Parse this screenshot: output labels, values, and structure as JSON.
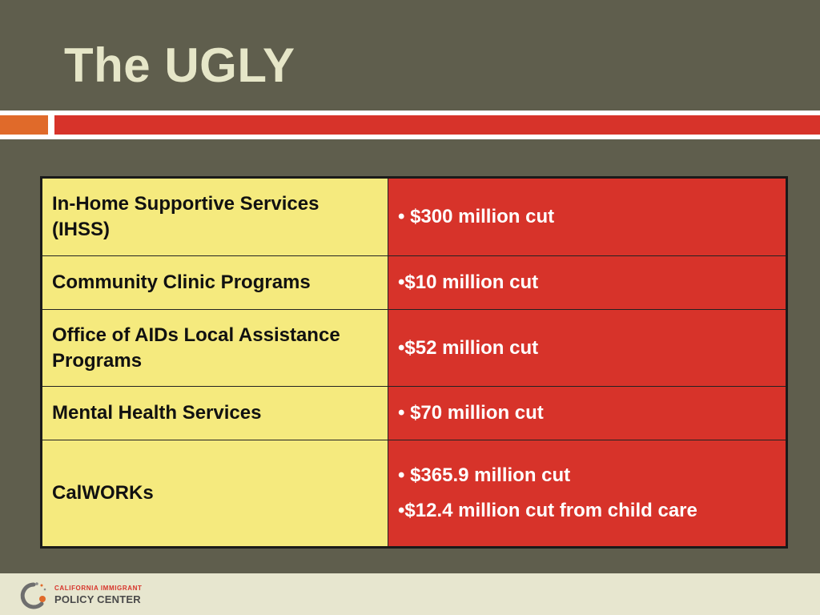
{
  "slide": {
    "title": "The UGLY"
  },
  "table": {
    "rows": [
      {
        "program": "In-Home Supportive Services (IHSS)",
        "cuts": [
          "• $300 million cut"
        ]
      },
      {
        "program": "Community Clinic Programs",
        "cuts": [
          "•$10 million cut"
        ]
      },
      {
        "program": "Office of AIDs Local Assistance Programs",
        "cuts": [
          "•$52 million cut"
        ]
      },
      {
        "program": "Mental Health Services",
        "cuts": [
          "• $70 million cut"
        ]
      },
      {
        "program": "CalWORKs",
        "cuts": [
          "• $365.9 million cut",
          "•$12.4 million cut from child care"
        ]
      }
    ]
  },
  "footer": {
    "logo_line1": "CALIFORNIA IMMIGRANT",
    "logo_line2": "POLICY CENTER"
  },
  "colors": {
    "background": "#5f5e4d",
    "title_text": "#e6e6c8",
    "accent_orange": "#e06a2a",
    "accent_red": "#d7332a",
    "program_cell": "#f5ea7e",
    "footer_band": "#e7e6cf"
  }
}
